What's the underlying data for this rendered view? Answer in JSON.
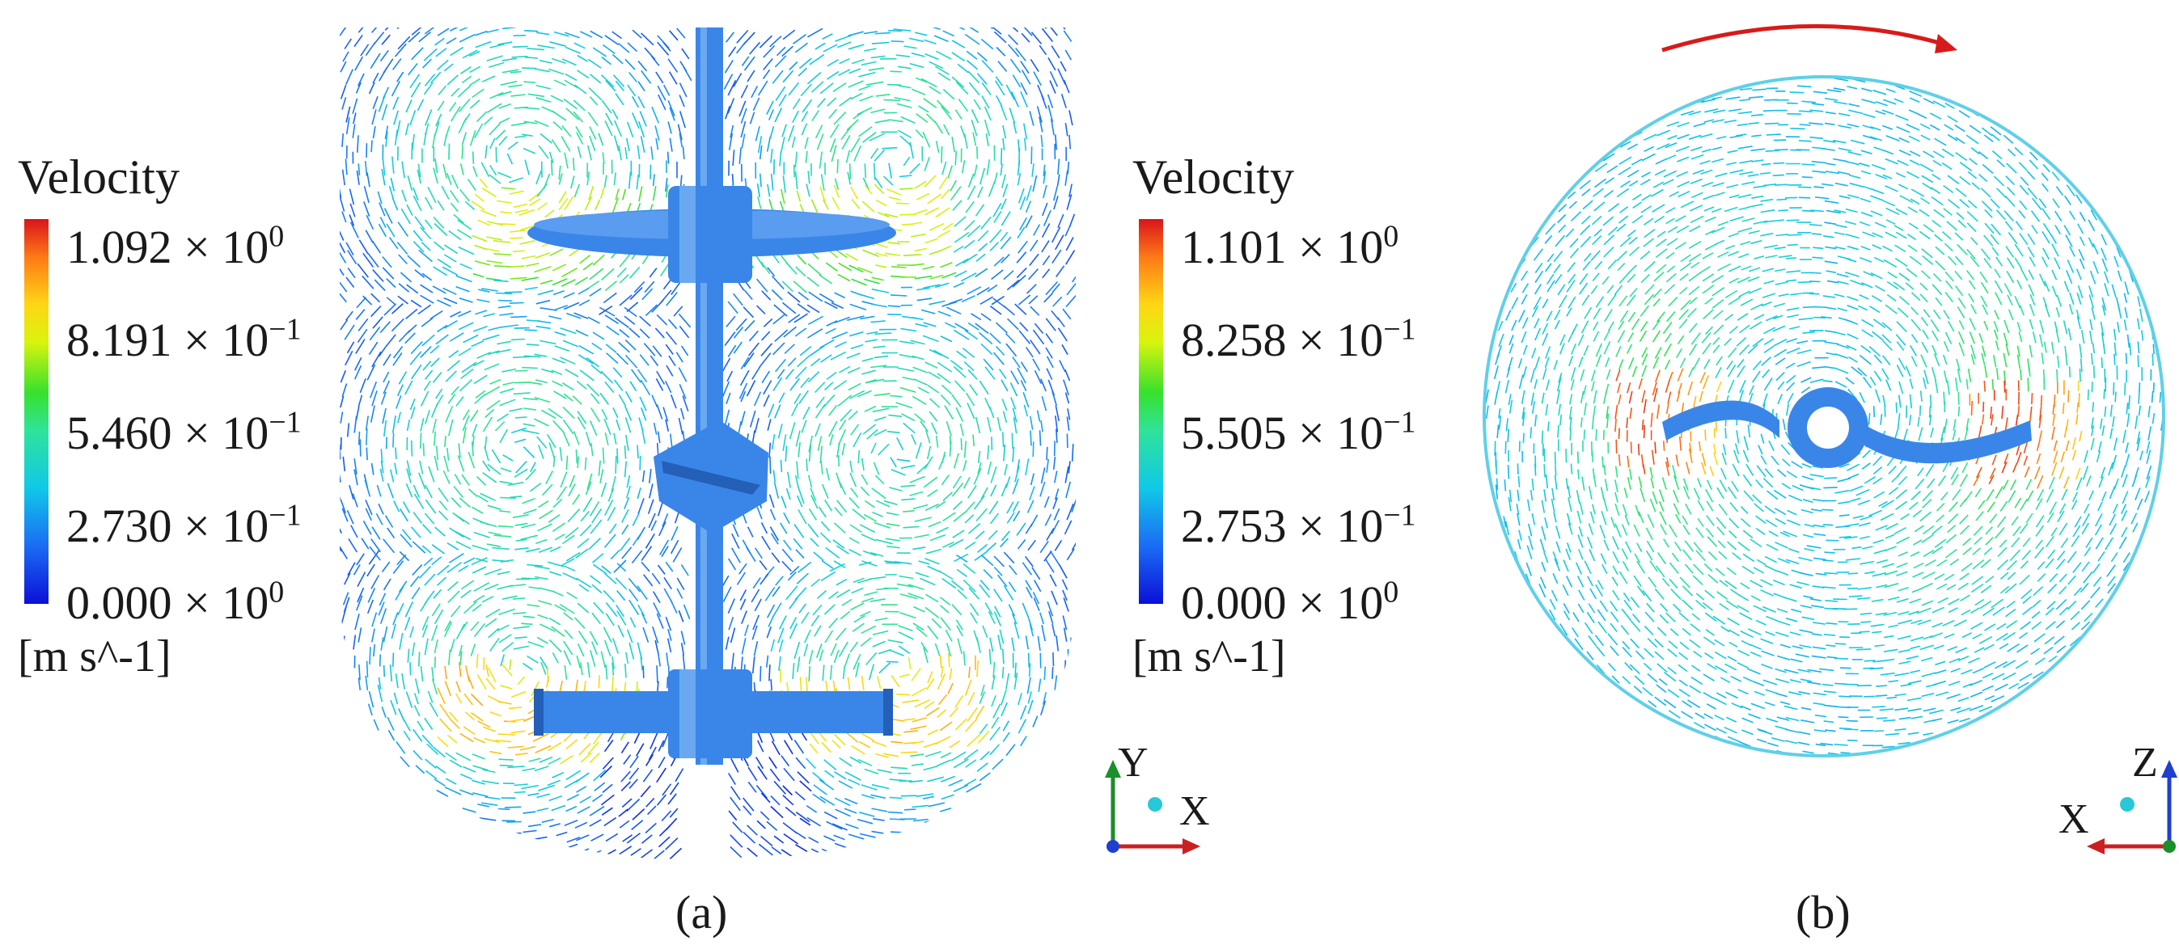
{
  "panels": [
    {
      "id": "a",
      "label": "(a)",
      "legend": {
        "title": "Velocity",
        "ticks": [
          {
            "mantissa": "1.092",
            "exponent": "0"
          },
          {
            "mantissa": "8.191",
            "exponent": "−1"
          },
          {
            "mantissa": "5.460",
            "exponent": "−1"
          },
          {
            "mantissa": "2.730",
            "exponent": "−1"
          },
          {
            "mantissa": "0.000",
            "exponent": "0"
          }
        ],
        "unit": "[m s^-1]"
      },
      "axes": {
        "vertical": "Y",
        "horizontal": "X"
      }
    },
    {
      "id": "b",
      "label": "(b)",
      "legend": {
        "title": "Velocity",
        "ticks": [
          {
            "mantissa": "1.101",
            "exponent": "0"
          },
          {
            "mantissa": "8.258",
            "exponent": "−1"
          },
          {
            "mantissa": "5.505",
            "exponent": "−1"
          },
          {
            "mantissa": "2.753",
            "exponent": "−1"
          },
          {
            "mantissa": "0.000",
            "exponent": "0"
          }
        ],
        "unit": "[m s^-1]"
      },
      "axes": {
        "vertical": "Z",
        "horizontal": "X"
      }
    }
  ],
  "colors": {
    "impeller": "#3a86e8",
    "rotation_arrow": "#d91a1a",
    "axis_y": "#1a8f2a",
    "axis_x": "#cc1f1f",
    "axis_z": "#1f3fd0"
  }
}
